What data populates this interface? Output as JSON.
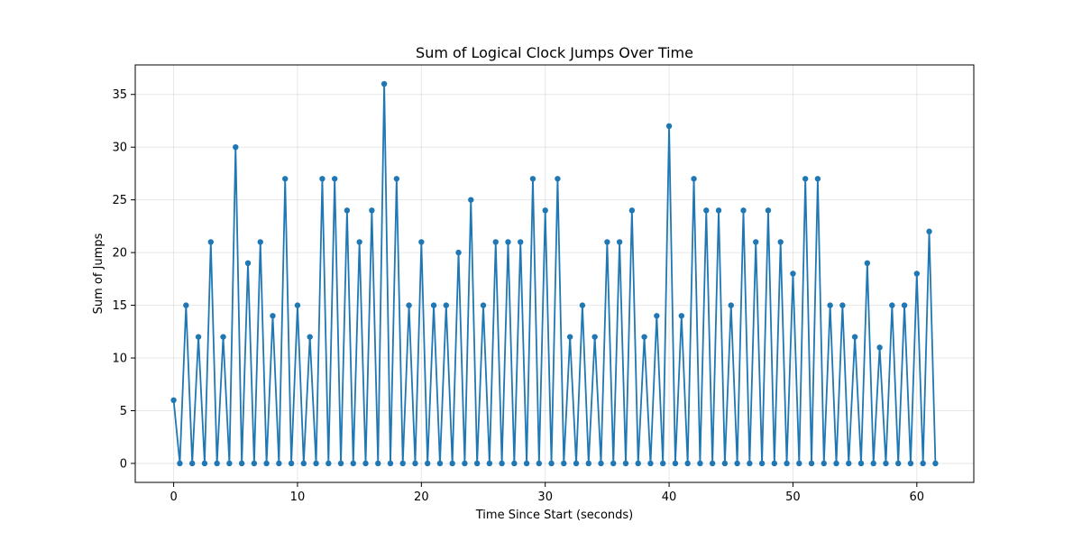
{
  "chart_data": {
    "type": "line",
    "title": "Sum of Logical Clock Jumps Over Time",
    "xlabel": "Time Since Start (seconds)",
    "ylabel": "Sum of Jumps",
    "xlim": [
      -3.1,
      64.6
    ],
    "ylim": [
      -1.8,
      37.8
    ],
    "xticks": [
      0,
      10,
      20,
      30,
      40,
      50,
      60
    ],
    "yticks": [
      0,
      5,
      10,
      15,
      20,
      25,
      30,
      35
    ],
    "grid": true,
    "marker": "circle",
    "series": [
      {
        "color": "#1f77b4",
        "points": [
          [
            0,
            6
          ],
          [
            0.5,
            0
          ],
          [
            1,
            15
          ],
          [
            1.5,
            0
          ],
          [
            2,
            12
          ],
          [
            2.5,
            0
          ],
          [
            3,
            21
          ],
          [
            3.5,
            0
          ],
          [
            4,
            12
          ],
          [
            4.5,
            0
          ],
          [
            5,
            30
          ],
          [
            5.5,
            0
          ],
          [
            6,
            19
          ],
          [
            6.5,
            0
          ],
          [
            7,
            21
          ],
          [
            7.5,
            0
          ],
          [
            8,
            14
          ],
          [
            8.5,
            0
          ],
          [
            9,
            27
          ],
          [
            9.5,
            0
          ],
          [
            10,
            15
          ],
          [
            10.5,
            0
          ],
          [
            11,
            12
          ],
          [
            11.5,
            0
          ],
          [
            12,
            27
          ],
          [
            12.5,
            0
          ],
          [
            13,
            27
          ],
          [
            13.5,
            0
          ],
          [
            14,
            24
          ],
          [
            14.5,
            0
          ],
          [
            15,
            21
          ],
          [
            15.5,
            0
          ],
          [
            16,
            24
          ],
          [
            16.5,
            0
          ],
          [
            17,
            36
          ],
          [
            17.5,
            0
          ],
          [
            18,
            27
          ],
          [
            18.5,
            0
          ],
          [
            19,
            15
          ],
          [
            19.5,
            0
          ],
          [
            20,
            21
          ],
          [
            20.5,
            0
          ],
          [
            21,
            15
          ],
          [
            21.5,
            0
          ],
          [
            22,
            15
          ],
          [
            22.5,
            0
          ],
          [
            23,
            20
          ],
          [
            23.5,
            0
          ],
          [
            24,
            25
          ],
          [
            24.5,
            0
          ],
          [
            25,
            15
          ],
          [
            25.5,
            0
          ],
          [
            26,
            21
          ],
          [
            26.5,
            0
          ],
          [
            27,
            21
          ],
          [
            27.5,
            0
          ],
          [
            28,
            21
          ],
          [
            28.5,
            0
          ],
          [
            29,
            27
          ],
          [
            29.5,
            0
          ],
          [
            30,
            24
          ],
          [
            30.5,
            0
          ],
          [
            31,
            27
          ],
          [
            31.5,
            0
          ],
          [
            32,
            12
          ],
          [
            32.5,
            0
          ],
          [
            33,
            15
          ],
          [
            33.5,
            0
          ],
          [
            34,
            12
          ],
          [
            34.5,
            0
          ],
          [
            35,
            21
          ],
          [
            35.5,
            0
          ],
          [
            36,
            21
          ],
          [
            36.5,
            0
          ],
          [
            37,
            24
          ],
          [
            37.5,
            0
          ],
          [
            38,
            12
          ],
          [
            38.5,
            0
          ],
          [
            39,
            14
          ],
          [
            39.5,
            0
          ],
          [
            40,
            32
          ],
          [
            40.5,
            0
          ],
          [
            41,
            14
          ],
          [
            41.5,
            0
          ],
          [
            42,
            27
          ],
          [
            42.5,
            0
          ],
          [
            43,
            24
          ],
          [
            43.5,
            0
          ],
          [
            44,
            24
          ],
          [
            44.5,
            0
          ],
          [
            45,
            15
          ],
          [
            45.5,
            0
          ],
          [
            46,
            24
          ],
          [
            46.5,
            0
          ],
          [
            47,
            21
          ],
          [
            47.5,
            0
          ],
          [
            48,
            24
          ],
          [
            48.5,
            0
          ],
          [
            49,
            21
          ],
          [
            49.5,
            0
          ],
          [
            50,
            18
          ],
          [
            50.5,
            0
          ],
          [
            51,
            27
          ],
          [
            51.5,
            0
          ],
          [
            52,
            27
          ],
          [
            52.5,
            0
          ],
          [
            53,
            15
          ],
          [
            53.5,
            0
          ],
          [
            54,
            15
          ],
          [
            54.5,
            0
          ],
          [
            55,
            12
          ],
          [
            55.5,
            0
          ],
          [
            56,
            19
          ],
          [
            56.5,
            0
          ],
          [
            57,
            11
          ],
          [
            57.5,
            0
          ],
          [
            58,
            15
          ],
          [
            58.5,
            0
          ],
          [
            59,
            15
          ],
          [
            59.5,
            0
          ],
          [
            60,
            18
          ],
          [
            60.5,
            0
          ],
          [
            61,
            22
          ],
          [
            61.5,
            0
          ]
        ]
      }
    ]
  }
}
